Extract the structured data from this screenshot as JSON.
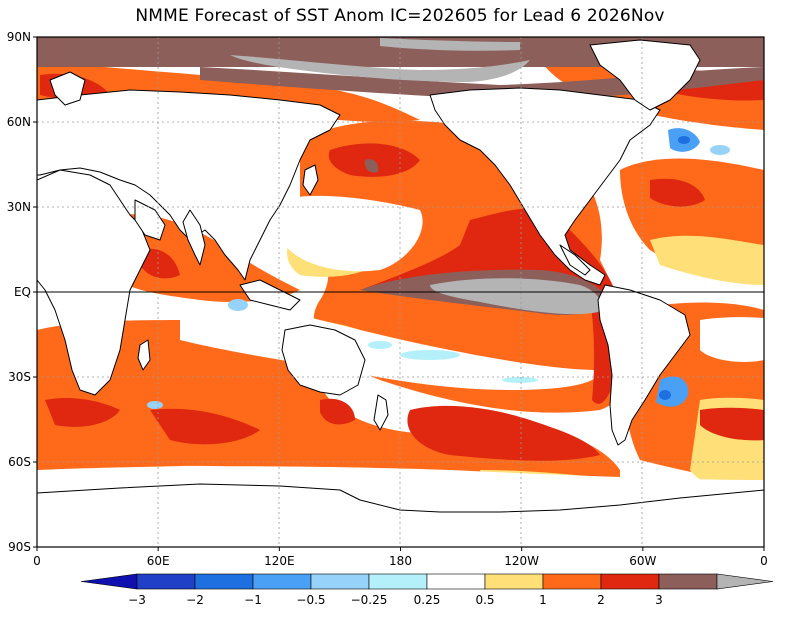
{
  "title": "NMME Forecast of SST Anom IC=202605 for Lead 6 2026Nov",
  "y_axis": {
    "labels": [
      "90N",
      "60N",
      "30N",
      "EQ",
      "30S",
      "60S",
      "90S"
    ],
    "values": [
      90,
      60,
      30,
      0,
      -30,
      -60,
      -90
    ]
  },
  "x_axis": {
    "labels": [
      "0",
      "60E",
      "120E",
      "180",
      "120W",
      "60W",
      "0"
    ],
    "values": [
      0,
      60,
      120,
      180,
      240,
      300,
      360
    ]
  },
  "grid": true,
  "colors": {
    "ocean_neutral": "#ffffff",
    "coastline": "#000000",
    "land": "#ffffff",
    "sea_ice": "#8c8c8c"
  },
  "colorbar": {
    "levels": [
      {
        "label": "-3",
        "color": "#2040c8"
      },
      {
        "label": "-2",
        "color": "#1e6fe0"
      },
      {
        "label": "-1",
        "color": "#4aa0f5"
      },
      {
        "label": "-0.5",
        "color": "#96d2fa"
      },
      {
        "label": "-0.25",
        "color": "#b4f0fa"
      },
      {
        "label": "0.25",
        "color": "#ffffff"
      },
      {
        "label": "0.5",
        "color": "#ffe078"
      },
      {
        "label": "1",
        "color": "#ff6a1a"
      },
      {
        "label": "2",
        "color": "#e02810"
      },
      {
        "label": "3",
        "color": "#8c5f5a"
      }
    ],
    "under_color": "#1010b0",
    "over_color": "#b4b4b4",
    "tick_labels": [
      "−3",
      "−2",
      "−1",
      "−0.5",
      "−0.25",
      "0.25",
      "0.5",
      "1",
      "2",
      "3"
    ]
  }
}
